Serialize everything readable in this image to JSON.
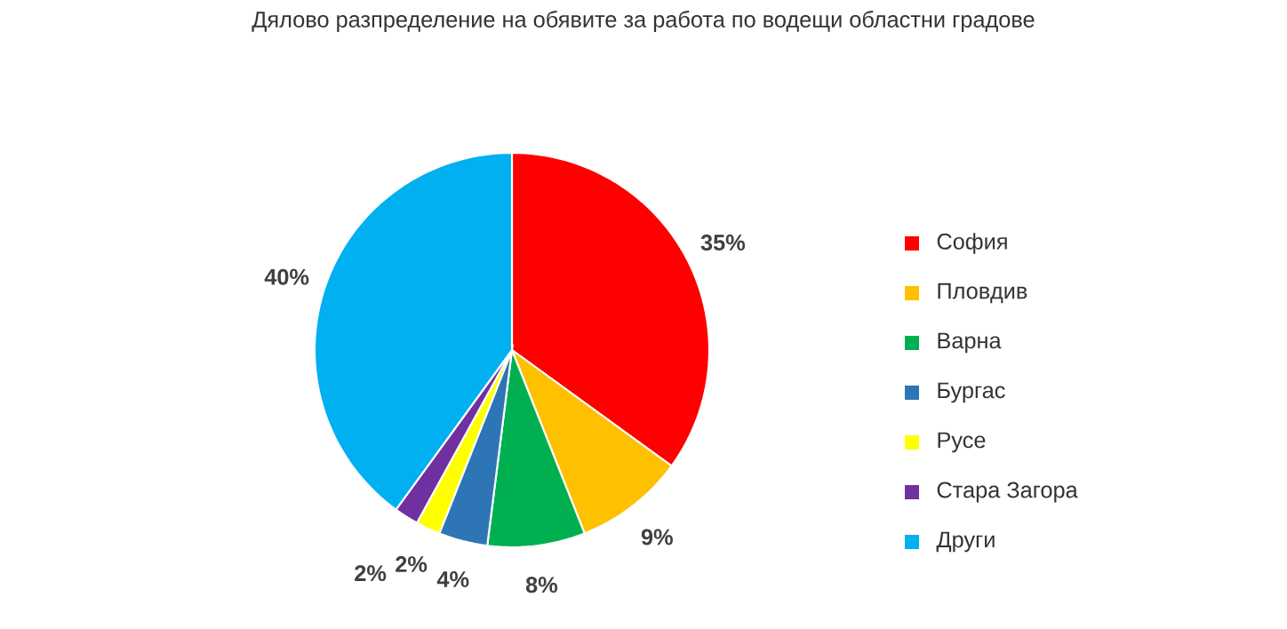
{
  "chart_data": {
    "type": "pie",
    "title": "Дялово разпределение на обявите за работа по водещи областни градове",
    "categories": [
      "София",
      "Пловдив",
      "Варна",
      "Бургас",
      "Русе",
      "Стара Загора",
      "Други"
    ],
    "values": [
      35,
      9,
      8,
      4,
      2,
      2,
      40
    ],
    "colors": [
      "#ff0000",
      "#ffc000",
      "#00b050",
      "#2e75b6",
      "#ffff00",
      "#7030a0",
      "#00b0f0"
    ],
    "value_labels": [
      "35%",
      "9%",
      "8%",
      "4%",
      "2%",
      "2%",
      "40%"
    ],
    "legend": "right"
  }
}
